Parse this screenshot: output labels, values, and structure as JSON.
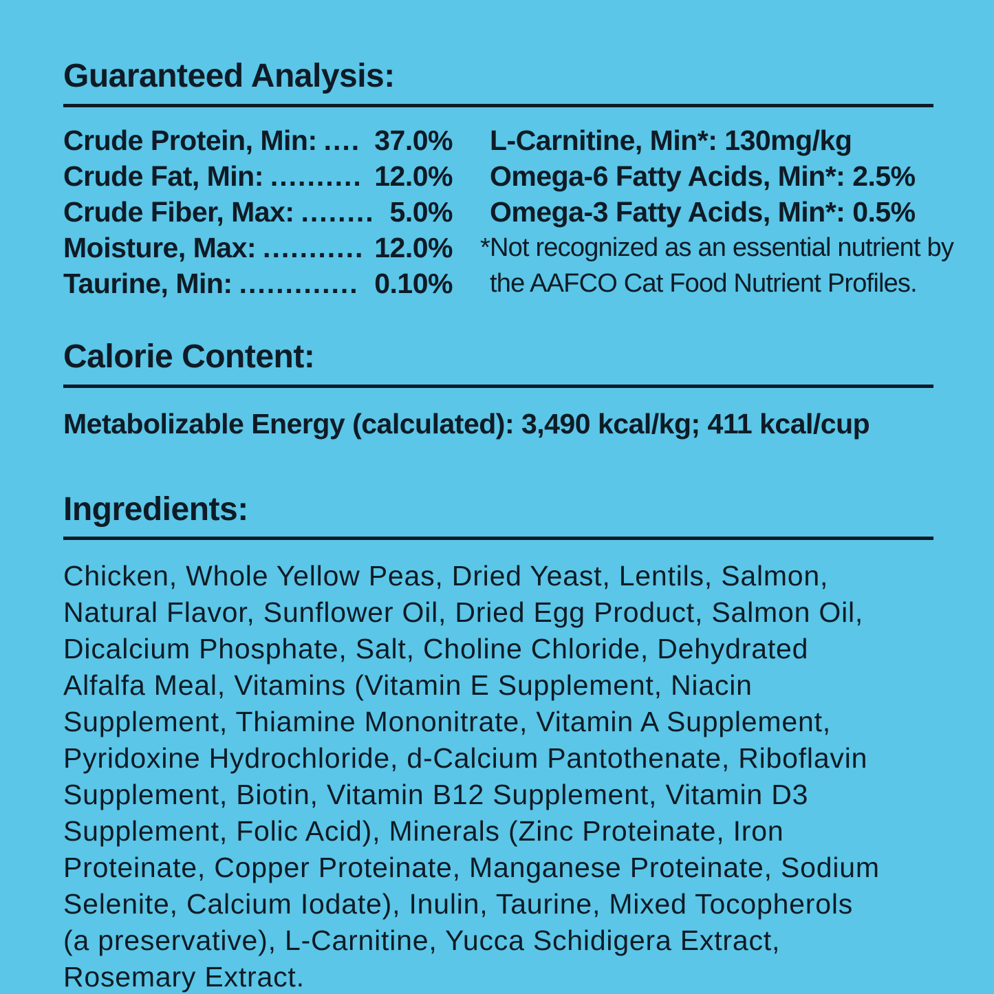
{
  "theme": {
    "background_color": "#5BC6E7",
    "text_color": "#0E1B26"
  },
  "guaranteed_analysis": {
    "heading": "Guaranteed Analysis:",
    "left_rows": [
      {
        "label": "Crude Protein, Min:",
        "dots": "....",
        "value": "37.0%"
      },
      {
        "label": "Crude Fat, Min:",
        "dots": "..........",
        "value": "12.0%"
      },
      {
        "label": "Crude Fiber, Max:",
        "dots": "........",
        "value": "5.0%"
      },
      {
        "label": "Moisture, Max:",
        "dots": "...........",
        "value": "12.0%"
      },
      {
        "label": "Taurine, Min:",
        "dots": ".............",
        "value": "0.10%"
      }
    ],
    "right_rows": [
      "L-Carnitine, Min*: 130mg/kg",
      "Omega-6 Fatty Acids, Min*: 2.5%",
      "Omega-3 Fatty Acids, Min*: 0.5%"
    ],
    "footnote": {
      "line1": "*Not recognized as an essential nutrient by",
      "line2": "the AAFCO Cat Food Nutrient Profiles."
    }
  },
  "calorie_content": {
    "heading": "Calorie Content:",
    "body": "Metabolizable Energy (calculated): 3,490 kcal/kg; 411 kcal/cup"
  },
  "ingredients": {
    "heading": "Ingredients:",
    "lines": [
      "Chicken, Whole Yellow Peas, Dried Yeast, Lentils, Salmon,",
      "Natural Flavor, Sunflower Oil, Dried Egg Product, Salmon Oil,",
      "Dicalcium Phosphate, Salt, Choline Chloride, Dehydrated",
      "Alfalfa Meal, Vitamins (Vitamin E Supplement, Niacin",
      "Supplement, Thiamine Mononitrate, Vitamin A Supplement,",
      "Pyridoxine Hydrochloride, d-Calcium Pantothenate, Riboflavin",
      "Supplement, Biotin, Vitamin B12 Supplement, Vitamin D3",
      "Supplement, Folic Acid), Minerals (Zinc Proteinate, Iron",
      "Proteinate, Copper Proteinate, Manganese Proteinate, Sodium",
      "Selenite, Calcium Iodate), Inulin, Taurine, Mixed Tocopherols",
      "(a preservative), L-Carnitine, Yucca Schidigera Extract,",
      "Rosemary Extract."
    ]
  }
}
